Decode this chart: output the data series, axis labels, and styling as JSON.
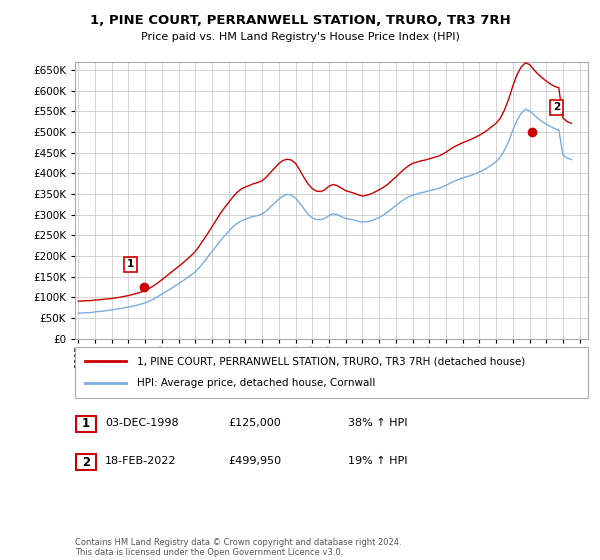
{
  "title": "1, PINE COURT, PERRANWELL STATION, TRURO, TR3 7RH",
  "subtitle": "Price paid vs. HM Land Registry's House Price Index (HPI)",
  "ylim": [
    0,
    670000
  ],
  "yticks": [
    0,
    50000,
    100000,
    150000,
    200000,
    250000,
    300000,
    350000,
    400000,
    450000,
    500000,
    550000,
    600000,
    650000
  ],
  "xlim_start": 1994.8,
  "xlim_end": 2025.5,
  "transaction1": {
    "label": "1",
    "date": "03-DEC-1998",
    "price": "£125,000",
    "hpi_diff": "38% ↑ HPI",
    "year": 1998.92,
    "value": 125000
  },
  "transaction2": {
    "label": "2",
    "date": "18-FEB-2022",
    "price": "£499,950",
    "hpi_diff": "19% ↑ HPI",
    "year": 2022.12,
    "value": 499950
  },
  "legend_line1": "1, PINE COURT, PERRANWELL STATION, TRURO, TR3 7RH (detached house)",
  "legend_line2": "HPI: Average price, detached house, Cornwall",
  "footnote": "Contains HM Land Registry data © Crown copyright and database right 2024.\nThis data is licensed under the Open Government Licence v3.0.",
  "red_color": "#cc0000",
  "blue_color": "#7aade0",
  "grid_color": "#cccccc",
  "background_color": "#ffffff",
  "hpi_years": [
    1995.0,
    1995.25,
    1995.5,
    1995.75,
    1996.0,
    1996.25,
    1996.5,
    1996.75,
    1997.0,
    1997.25,
    1997.5,
    1997.75,
    1998.0,
    1998.25,
    1998.5,
    1998.75,
    1999.0,
    1999.25,
    1999.5,
    1999.75,
    2000.0,
    2000.25,
    2000.5,
    2000.75,
    2001.0,
    2001.25,
    2001.5,
    2001.75,
    2002.0,
    2002.25,
    2002.5,
    2002.75,
    2003.0,
    2003.25,
    2003.5,
    2003.75,
    2004.0,
    2004.25,
    2004.5,
    2004.75,
    2005.0,
    2005.25,
    2005.5,
    2005.75,
    2006.0,
    2006.25,
    2006.5,
    2006.75,
    2007.0,
    2007.25,
    2007.5,
    2007.75,
    2008.0,
    2008.25,
    2008.5,
    2008.75,
    2009.0,
    2009.25,
    2009.5,
    2009.75,
    2010.0,
    2010.25,
    2010.5,
    2010.75,
    2011.0,
    2011.25,
    2011.5,
    2011.75,
    2012.0,
    2012.25,
    2012.5,
    2012.75,
    2013.0,
    2013.25,
    2013.5,
    2013.75,
    2014.0,
    2014.25,
    2014.5,
    2014.75,
    2015.0,
    2015.25,
    2015.5,
    2015.75,
    2016.0,
    2016.25,
    2016.5,
    2016.75,
    2017.0,
    2017.25,
    2017.5,
    2017.75,
    2018.0,
    2018.25,
    2018.5,
    2018.75,
    2019.0,
    2019.25,
    2019.5,
    2019.75,
    2020.0,
    2020.25,
    2020.5,
    2020.75,
    2021.0,
    2021.25,
    2021.5,
    2021.75,
    2022.0,
    2022.25,
    2022.5,
    2022.75,
    2023.0,
    2023.25,
    2023.5,
    2023.75,
    2024.0,
    2024.25,
    2024.5
  ],
  "hpi_values": [
    62000,
    62500,
    63000,
    63500,
    65000,
    66000,
    67000,
    68500,
    70000,
    71500,
    73000,
    75000,
    77000,
    79000,
    81000,
    84000,
    87000,
    91000,
    96000,
    102000,
    108000,
    114000,
    120000,
    127000,
    133000,
    140000,
    147000,
    154000,
    162000,
    173000,
    185000,
    198000,
    211000,
    224000,
    237000,
    249000,
    260000,
    271000,
    279000,
    285000,
    289000,
    293000,
    296000,
    298000,
    302000,
    309000,
    319000,
    328000,
    338000,
    345000,
    349000,
    347000,
    340000,
    328000,
    314000,
    301000,
    292000,
    288000,
    288000,
    291000,
    298000,
    302000,
    300000,
    295000,
    291000,
    289000,
    287000,
    284000,
    282000,
    283000,
    285000,
    289000,
    293000,
    299000,
    306000,
    314000,
    322000,
    330000,
    337000,
    343000,
    347000,
    350000,
    353000,
    355000,
    358000,
    360000,
    363000,
    366000,
    371000,
    376000,
    381000,
    385000,
    389000,
    392000,
    395000,
    399000,
    403000,
    408000,
    414000,
    421000,
    428000,
    439000,
    456000,
    477000,
    504000,
    528000,
    545000,
    555000,
    551000,
    542000,
    533000,
    525000,
    519000,
    513000,
    508000,
    505000,
    444000,
    437000,
    433000
  ],
  "red_years": [
    1995.0,
    1995.25,
    1995.5,
    1995.75,
    1996.0,
    1996.25,
    1996.5,
    1996.75,
    1997.0,
    1997.25,
    1997.5,
    1997.75,
    1998.0,
    1998.25,
    1998.5,
    1998.75,
    1999.0,
    1999.25,
    1999.5,
    1999.75,
    2000.0,
    2000.25,
    2000.5,
    2000.75,
    2001.0,
    2001.25,
    2001.5,
    2001.75,
    2002.0,
    2002.25,
    2002.5,
    2002.75,
    2003.0,
    2003.25,
    2003.5,
    2003.75,
    2004.0,
    2004.25,
    2004.5,
    2004.75,
    2005.0,
    2005.25,
    2005.5,
    2005.75,
    2006.0,
    2006.25,
    2006.5,
    2006.75,
    2007.0,
    2007.25,
    2007.5,
    2007.75,
    2008.0,
    2008.25,
    2008.5,
    2008.75,
    2009.0,
    2009.25,
    2009.5,
    2009.75,
    2010.0,
    2010.25,
    2010.5,
    2010.75,
    2011.0,
    2011.25,
    2011.5,
    2011.75,
    2012.0,
    2012.25,
    2012.5,
    2012.75,
    2013.0,
    2013.25,
    2013.5,
    2013.75,
    2014.0,
    2014.25,
    2014.5,
    2014.75,
    2015.0,
    2015.25,
    2015.5,
    2015.75,
    2016.0,
    2016.25,
    2016.5,
    2016.75,
    2017.0,
    2017.25,
    2017.5,
    2017.75,
    2018.0,
    2018.25,
    2018.5,
    2018.75,
    2019.0,
    2019.25,
    2019.5,
    2019.75,
    2020.0,
    2020.25,
    2020.5,
    2020.75,
    2021.0,
    2021.25,
    2021.5,
    2021.75,
    2022.0,
    2022.25,
    2022.5,
    2022.75,
    2023.0,
    2023.25,
    2023.5,
    2023.75,
    2024.0,
    2024.25,
    2024.5
  ],
  "red_values": [
    91000,
    91500,
    92000,
    92500,
    93500,
    94500,
    95500,
    96500,
    97500,
    99000,
    100500,
    102500,
    104500,
    107000,
    110000,
    113000,
    117000,
    122000,
    128000,
    135000,
    143000,
    151000,
    159000,
    167000,
    175000,
    183000,
    192000,
    201000,
    211000,
    225000,
    240000,
    255000,
    271000,
    287000,
    303000,
    317000,
    330000,
    343000,
    354000,
    362000,
    367000,
    371000,
    375000,
    378000,
    382000,
    391000,
    402000,
    413000,
    424000,
    431000,
    434000,
    432000,
    424000,
    408000,
    390000,
    374000,
    363000,
    357000,
    356000,
    360000,
    369000,
    373000,
    370000,
    364000,
    358000,
    355000,
    352000,
    348000,
    345000,
    347000,
    350000,
    355000,
    360000,
    366000,
    373000,
    382000,
    391000,
    401000,
    410000,
    418000,
    424000,
    427000,
    430000,
    432000,
    435000,
    438000,
    441000,
    445000,
    451000,
    458000,
    464000,
    469000,
    474000,
    478000,
    482000,
    487000,
    492000,
    498000,
    505000,
    513000,
    521000,
    533000,
    553000,
    579000,
    611000,
    638000,
    657000,
    667000,
    663000,
    651000,
    640000,
    631000,
    623000,
    616000,
    610000,
    607000,
    534000,
    525000,
    521000
  ]
}
